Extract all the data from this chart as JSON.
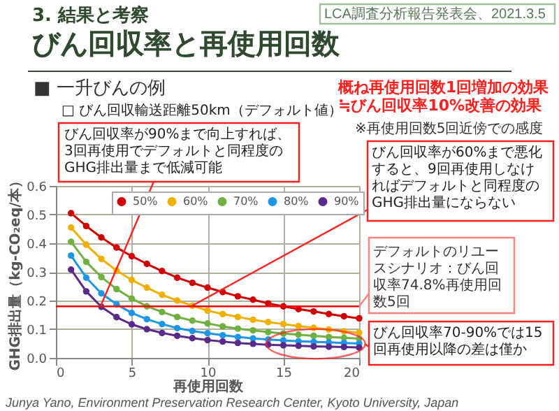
{
  "chart_data": {
    "type": "line",
    "title": "びん回収率と再使用回数",
    "subtitle": "3. 結果と考察",
    "xlabel": "再使用回数",
    "ylabel": "GHG排出量（kg-CO₂eq/本）",
    "x": [
      1,
      2,
      3,
      4,
      5,
      6,
      7,
      8,
      9,
      10,
      11,
      12,
      13,
      14,
      15,
      16,
      17,
      18,
      19,
      20
    ],
    "series": [
      {
        "name": "50%",
        "color": "#d00000",
        "values": [
          0.505,
          0.46,
          0.42,
          0.385,
          0.355,
          0.328,
          0.303,
          0.28,
          0.262,
          0.245,
          0.23,
          0.215,
          0.203,
          0.19,
          0.18,
          0.17,
          0.162,
          0.153,
          0.145,
          0.138
        ]
      },
      {
        "name": "60%",
        "color": "#f0b000",
        "values": [
          0.455,
          0.395,
          0.345,
          0.305,
          0.272,
          0.245,
          0.22,
          0.2,
          0.182,
          0.165,
          0.153,
          0.143,
          0.133,
          0.125,
          0.118,
          0.111,
          0.105,
          0.099,
          0.093,
          0.088
        ]
      },
      {
        "name": "70%",
        "color": "#70b040",
        "values": [
          0.405,
          0.335,
          0.282,
          0.24,
          0.207,
          0.18,
          0.16,
          0.143,
          0.13,
          0.12,
          0.11,
          0.102,
          0.096,
          0.09,
          0.085,
          0.081,
          0.077,
          0.073,
          0.07,
          0.067
        ]
      },
      {
        "name": "80%",
        "color": "#1e96e6",
        "values": [
          0.357,
          0.28,
          0.225,
          0.187,
          0.157,
          0.135,
          0.118,
          0.104,
          0.094,
          0.086,
          0.079,
          0.073,
          0.068,
          0.064,
          0.061,
          0.058,
          0.056,
          0.054,
          0.052,
          0.05
        ]
      },
      {
        "name": "90%",
        "color": "#5a2a8a",
        "values": [
          0.308,
          0.232,
          0.178,
          0.142,
          0.117,
          0.1,
          0.087,
          0.077,
          0.069,
          0.062,
          0.057,
          0.052,
          0.049,
          0.046,
          0.044,
          0.042,
          0.04,
          0.039,
          0.038,
          0.036
        ]
      }
    ],
    "xlim": [
      0,
      20
    ],
    "xticks": [
      0,
      5,
      10,
      15,
      20
    ],
    "ylim": [
      0,
      0.6
    ],
    "yticks": [
      {
        "value": 0,
        "label": "0.0"
      },
      0.1,
      0.2,
      0.3,
      0.4,
      0.5,
      0.6
    ],
    "ref_lines": [
      {
        "axis": "y",
        "value": 0.18,
        "label": "デフォルトのリユースシナリオ：びん回収率74.8%再使用回数5回",
        "color": "#ff0000"
      }
    ],
    "annotations": [
      "LCA調査分析報告発表会、2021.3.5",
      "■ 一升びんの例",
      "□ びん回収輸送距離50km（デフォルト値）",
      "概ね再使用回数1回増加の効果",
      "≒びん回収率10%改善の効果",
      "※再使用回数5回近傍での感度",
      "びん回収率が90%まで向上すれば、3回再使用でデフォルトと同程度のGHG排出量まで低減可能",
      "びん回収率が60%まで悪化すると、9回再使用しなければデフォルトと同程度のGHG排出量にならない",
      "びん回収率70-90%では15回再使用以降の差は僅か",
      "Junya Yano, Environment Preservation Research Center, Kyoto University, Japan"
    ],
    "grid": true,
    "legend": "top",
    "marker": "circle",
    "line_style": "solid"
  }
}
